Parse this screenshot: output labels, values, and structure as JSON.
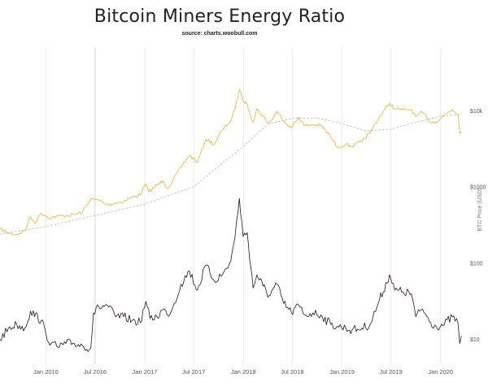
{
  "chart_data": {
    "type": "line",
    "title": "Bitcoin Miners Energy Ratio",
    "subtitle": "source: charts.woobull.com",
    "ylabel_right": "BTC Price (USD)",
    "y_scale": "log",
    "yticks_right": [
      {
        "value": 10,
        "label": "$10"
      },
      {
        "value": 100,
        "label": "$100"
      },
      {
        "value": 1000,
        "label": "$1000"
      },
      {
        "value": 10000,
        "label": "$10k"
      }
    ],
    "xticks": [
      {
        "date": "2016-01-01",
        "label": "Jan 2016"
      },
      {
        "date": "2016-07-01",
        "label": "Jul 2016"
      },
      {
        "date": "2017-01-01",
        "label": "Jan 2017"
      },
      {
        "date": "2017-07-01",
        "label": "Jul 2017"
      },
      {
        "date": "2018-01-01",
        "label": "Jan 2018"
      },
      {
        "date": "2018-07-01",
        "label": "Jul 2018"
      },
      {
        "date": "2019-01-01",
        "label": "Jan 2019"
      },
      {
        "date": "2019-07-01",
        "label": "Jul 2019"
      },
      {
        "date": "2020-01-01",
        "label": "Jan 2020"
      }
    ],
    "grid": "vertical",
    "x_range": [
      "2015-07-15",
      "2020-03-20"
    ],
    "series": [
      {
        "color": "#e9b949",
        "axis": "right",
        "points": [
          [
            "2015-07-15",
            280
          ],
          [
            "2015-08-15",
            245
          ],
          [
            "2015-09-15",
            235
          ],
          [
            "2015-10-15",
            265
          ],
          [
            "2015-11-05",
            400
          ],
          [
            "2015-11-20",
            330
          ],
          [
            "2015-12-15",
            450
          ],
          [
            "2016-01-15",
            390
          ],
          [
            "2016-02-15",
            410
          ],
          [
            "2016-03-15",
            415
          ],
          [
            "2016-04-15",
            430
          ],
          [
            "2016-05-15",
            460
          ],
          [
            "2016-06-15",
            700
          ],
          [
            "2016-07-01",
            670
          ],
          [
            "2016-07-15",
            665
          ],
          [
            "2016-08-15",
            575
          ],
          [
            "2016-09-15",
            610
          ],
          [
            "2016-10-15",
            640
          ],
          [
            "2016-11-15",
            730
          ],
          [
            "2016-12-15",
            780
          ],
          [
            "2017-01-05",
            1100
          ],
          [
            "2017-01-15",
            850
          ],
          [
            "2017-02-15",
            1050
          ],
          [
            "2017-03-10",
            1200
          ],
          [
            "2017-03-25",
            950
          ],
          [
            "2017-04-15",
            1200
          ],
          [
            "2017-05-15",
            1800
          ],
          [
            "2017-06-15",
            2600
          ],
          [
            "2017-07-15",
            2100
          ],
          [
            "2017-08-15",
            4200
          ],
          [
            "2017-09-15",
            3600
          ],
          [
            "2017-10-15",
            5600
          ],
          [
            "2017-11-15",
            7300
          ],
          [
            "2017-12-01",
            10500
          ],
          [
            "2017-12-17",
            19000
          ],
          [
            "2017-12-31",
            13500
          ],
          [
            "2018-01-15",
            12000
          ],
          [
            "2018-02-06",
            7000
          ],
          [
            "2018-02-20",
            10500
          ],
          [
            "2018-03-15",
            8300
          ],
          [
            "2018-04-06",
            6700
          ],
          [
            "2018-05-05",
            9700
          ],
          [
            "2018-05-30",
            7400
          ],
          [
            "2018-06-28",
            5900
          ],
          [
            "2018-07-25",
            8200
          ],
          [
            "2018-08-15",
            6300
          ],
          [
            "2018-09-15",
            6500
          ],
          [
            "2018-10-15",
            6400
          ],
          [
            "2018-11-20",
            4500
          ],
          [
            "2018-12-15",
            3300
          ],
          [
            "2019-01-15",
            3600
          ],
          [
            "2019-02-07",
            3400
          ],
          [
            "2019-03-15",
            3900
          ],
          [
            "2019-04-15",
            5100
          ],
          [
            "2019-05-15",
            7800
          ],
          [
            "2019-06-26",
            12500
          ],
          [
            "2019-07-15",
            10500
          ],
          [
            "2019-08-15",
            10200
          ],
          [
            "2019-09-15",
            10300
          ],
          [
            "2019-10-01",
            8300
          ],
          [
            "2019-10-26",
            9500
          ],
          [
            "2019-11-25",
            7000
          ],
          [
            "2019-12-15",
            7100
          ],
          [
            "2020-01-15",
            8700
          ],
          [
            "2020-02-13",
            10300
          ],
          [
            "2020-03-05",
            8800
          ],
          [
            "2020-03-12",
            5000
          ],
          [
            "2020-03-18",
            5300
          ]
        ]
      },
      {
        "color": "#bbbbbb",
        "dashed": true,
        "axis": "right",
        "points": [
          [
            "2015-07-15",
            238
          ],
          [
            "2016-01-01",
            300
          ],
          [
            "2016-07-01",
            420
          ],
          [
            "2017-01-01",
            590
          ],
          [
            "2017-07-01",
            1000
          ],
          [
            "2018-01-01",
            3400
          ],
          [
            "2018-04-01",
            6600
          ],
          [
            "2018-07-01",
            7900
          ],
          [
            "2018-10-01",
            8000
          ],
          [
            "2019-01-01",
            6700
          ],
          [
            "2019-04-01",
            5400
          ],
          [
            "2019-07-01",
            5700
          ],
          [
            "2019-10-01",
            7000
          ],
          [
            "2020-01-01",
            8400
          ],
          [
            "2020-03-18",
            8900
          ]
        ]
      },
      {
        "color": "#2a1111",
        "axis": "left-hidden",
        "y_range": [
          0,
          100
        ],
        "points": [
          [
            "2015-07-15",
            6
          ],
          [
            "2015-08-15",
            12
          ],
          [
            "2015-09-15",
            14
          ],
          [
            "2015-10-15",
            12
          ],
          [
            "2015-11-05",
            21
          ],
          [
            "2015-12-15",
            16
          ],
          [
            "2016-01-01",
            9
          ],
          [
            "2016-01-20",
            4
          ],
          [
            "2016-02-15",
            2
          ],
          [
            "2016-03-15",
            4
          ],
          [
            "2016-04-15",
            4
          ],
          [
            "2016-05-15",
            3
          ],
          [
            "2016-06-15",
            1.5
          ],
          [
            "2016-06-25",
            20
          ],
          [
            "2016-07-15",
            23
          ],
          [
            "2016-08-15",
            24
          ],
          [
            "2016-09-15",
            18
          ],
          [
            "2016-10-15",
            18
          ],
          [
            "2016-11-15",
            16
          ],
          [
            "2016-12-15",
            15
          ],
          [
            "2017-01-05",
            26
          ],
          [
            "2017-01-20",
            17
          ],
          [
            "2017-02-15",
            18
          ],
          [
            "2017-03-10",
            22
          ],
          [
            "2017-03-25",
            19
          ],
          [
            "2017-04-15",
            23
          ],
          [
            "2017-05-15",
            35
          ],
          [
            "2017-06-15",
            42
          ],
          [
            "2017-07-15",
            32
          ],
          [
            "2017-08-15",
            45
          ],
          [
            "2017-09-15",
            37
          ],
          [
            "2017-10-15",
            40
          ],
          [
            "2017-11-15",
            47
          ],
          [
            "2017-12-01",
            60
          ],
          [
            "2017-12-17",
            80
          ],
          [
            "2017-12-31",
            60
          ],
          [
            "2018-01-15",
            62
          ],
          [
            "2018-02-06",
            33
          ],
          [
            "2018-02-20",
            40
          ],
          [
            "2018-03-15",
            34
          ],
          [
            "2018-04-06",
            29
          ],
          [
            "2018-05-05",
            35
          ],
          [
            "2018-05-30",
            25
          ],
          [
            "2018-06-28",
            20
          ],
          [
            "2018-07-25",
            24
          ],
          [
            "2018-08-15",
            19
          ],
          [
            "2018-09-15",
            20
          ],
          [
            "2018-10-15",
            19
          ],
          [
            "2018-11-20",
            14
          ],
          [
            "2018-12-15",
            13
          ],
          [
            "2019-01-15",
            12
          ],
          [
            "2019-02-07",
            11
          ],
          [
            "2019-03-15",
            12
          ],
          [
            "2019-04-15",
            14
          ],
          [
            "2019-05-15",
            25
          ],
          [
            "2019-06-26",
            40
          ],
          [
            "2019-07-15",
            32
          ],
          [
            "2019-08-15",
            31
          ],
          [
            "2019-09-15",
            30
          ],
          [
            "2019-10-01",
            18
          ],
          [
            "2019-10-26",
            22
          ],
          [
            "2019-11-25",
            15
          ],
          [
            "2019-12-15",
            13
          ],
          [
            "2020-01-15",
            14
          ],
          [
            "2020-02-13",
            18
          ],
          [
            "2020-03-05",
            15
          ],
          [
            "2020-03-12",
            4
          ],
          [
            "2020-03-18",
            8
          ]
        ]
      }
    ]
  }
}
